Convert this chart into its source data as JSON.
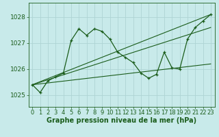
{
  "background_color": "#c8eaea",
  "grid_color": "#aed4d4",
  "line_color": "#1a5c1a",
  "marker_color": "#1a5c1a",
  "xlabel": "Graphe pression niveau de la mer (hPa)",
  "xlabel_fontsize": 7,
  "ylabel_ticks": [
    1025,
    1026,
    1027,
    1028
  ],
  "xlim": [
    -0.5,
    23.5
  ],
  "ylim": [
    1024.55,
    1028.55
  ],
  "tick_fontsize": 6.0,
  "ytick_fontsize": 6.5,
  "series": [
    {
      "x": [
        0,
        1,
        2,
        3,
        4,
        5,
        6,
        7,
        8,
        9,
        10,
        11,
        12,
        13,
        14,
        15,
        16,
        17,
        18,
        19,
        20,
        21,
        22,
        23
      ],
      "y": [
        1025.4,
        1025.1,
        1025.55,
        1025.7,
        1025.85,
        1027.1,
        1027.55,
        1027.3,
        1027.55,
        1027.45,
        1027.15,
        1026.65,
        1026.45,
        1026.25,
        1025.85,
        1025.65,
        1025.8,
        1026.65,
        1026.05,
        1026.0,
        1027.15,
        1027.6,
        1027.85,
        1028.1
      ]
    },
    {
      "x": [
        0,
        23
      ],
      "y": [
        1025.4,
        1028.1
      ]
    },
    {
      "x": [
        0,
        23
      ],
      "y": [
        1025.4,
        1027.6
      ]
    },
    {
      "x": [
        0,
        23
      ],
      "y": [
        1025.4,
        1026.2
      ]
    }
  ],
  "xtick_labels": [
    "0",
    "1",
    "2",
    "3",
    "4",
    "5",
    "6",
    "7",
    "8",
    "9",
    "10",
    "11",
    "12",
    "13",
    "14",
    "15",
    "16",
    "17",
    "18",
    "19",
    "20",
    "21",
    "22",
    "23"
  ]
}
